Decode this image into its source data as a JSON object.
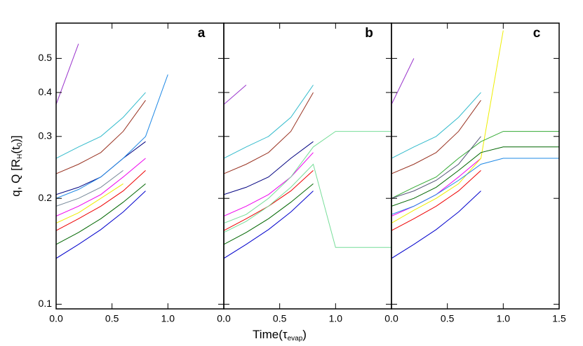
{
  "chart_data": [
    {
      "type": "line",
      "panel_label": "a",
      "ylog": true,
      "ylim": [
        0.097,
        0.63
      ],
      "yticks": [
        0.1,
        0.2,
        0.3,
        0.4,
        0.5
      ],
      "xlim": [
        0,
        1.5
      ],
      "xticks": [
        {
          "value": 0,
          "label": "0.0"
        },
        {
          "value": 0.5,
          "label": "0.5"
        },
        {
          "value": 1,
          "label": "1.0"
        }
      ],
      "ylabel": [
        "q, Q [R",
        "H",
        "(t",
        "0",
        ")]"
      ],
      "x": [
        0,
        0.2,
        0.4,
        0.6,
        0.8,
        1.0,
        1.2,
        1.5
      ],
      "series": [
        {
          "color": "#0000cc",
          "values": [
            0.135,
            0.148,
            0.163,
            0.183,
            0.21,
            null,
            null,
            null
          ]
        },
        {
          "color": "#006600",
          "values": [
            0.148,
            0.16,
            0.175,
            0.195,
            0.22,
            null,
            null,
            null
          ]
        },
        {
          "color": "#ee0000",
          "values": [
            0.162,
            0.175,
            0.19,
            0.21,
            0.24,
            null,
            null,
            null
          ]
        },
        {
          "color": "#eeee00",
          "values": [
            0.17,
            0.182,
            0.2,
            0.22,
            null,
            null,
            null,
            null
          ]
        },
        {
          "color": "#ee00ee",
          "values": [
            0.178,
            0.19,
            0.205,
            0.23,
            0.26,
            null,
            null,
            null
          ]
        },
        {
          "color": "#778899",
          "values": [
            0.19,
            0.2,
            0.215,
            0.24,
            null,
            null,
            null,
            null
          ]
        },
        {
          "color": "#000080",
          "values": [
            0.205,
            0.215,
            0.23,
            0.26,
            0.29,
            null,
            null,
            null
          ]
        },
        {
          "color": "#993322",
          "values": [
            0.235,
            0.25,
            0.27,
            0.31,
            0.38,
            null,
            null,
            null
          ]
        },
        {
          "color": "#33bbcc",
          "values": [
            0.26,
            0.28,
            0.3,
            0.34,
            0.4,
            null,
            null,
            null
          ]
        },
        {
          "color": "#1e88e5",
          "values": [
            0.2,
            0.212,
            0.23,
            0.26,
            0.3,
            0.45,
            null,
            null
          ]
        },
        {
          "color": "#9933cc",
          "values": [
            0.37,
            0.55,
            null,
            null,
            null,
            null,
            null,
            null
          ]
        }
      ]
    },
    {
      "type": "line",
      "panel_label": "b",
      "ylog": true,
      "ylim": [
        0.097,
        0.63
      ],
      "yticks": [
        0.1,
        0.2,
        0.3,
        0.4,
        0.5
      ],
      "xlim": [
        0,
        1.5
      ],
      "xticks": [
        {
          "value": 0,
          "label": "0.0"
        },
        {
          "value": 0.5,
          "label": "0.5"
        },
        {
          "value": 1,
          "label": "1.0"
        }
      ],
      "x": [
        0,
        0.2,
        0.4,
        0.6,
        0.8,
        1.0,
        1.2,
        1.5
      ],
      "series": [
        {
          "color": "#0000cc",
          "values": [
            0.135,
            0.148,
            0.163,
            0.183,
            0.21,
            null,
            null,
            null
          ]
        },
        {
          "color": "#006600",
          "values": [
            0.148,
            0.16,
            0.175,
            0.195,
            0.22,
            null,
            null,
            null
          ]
        },
        {
          "color": "#ee0000",
          "values": [
            0.162,
            0.175,
            0.19,
            0.21,
            0.24,
            null,
            null,
            null
          ]
        },
        {
          "color": "#ee00ee",
          "values": [
            0.178,
            0.19,
            0.205,
            0.23,
            0.27,
            null,
            null,
            null
          ]
        },
        {
          "color": "#000080",
          "values": [
            0.205,
            0.215,
            0.23,
            0.26,
            0.29,
            null,
            null,
            null
          ]
        },
        {
          "color": "#993322",
          "values": [
            0.235,
            0.25,
            0.27,
            0.31,
            0.4,
            null,
            null,
            null
          ]
        },
        {
          "color": "#33bbcc",
          "values": [
            0.26,
            0.28,
            0.3,
            0.34,
            0.42,
            null,
            null,
            null
          ]
        },
        {
          "color": "#77dd99",
          "values": [
            0.17,
            0.18,
            0.2,
            0.23,
            0.28,
            0.31,
            0.31,
            0.31
          ]
        },
        {
          "color": "#77dd99",
          "values": [
            0.16,
            0.172,
            0.19,
            0.215,
            0.25,
            0.145,
            0.145,
            0.145
          ]
        },
        {
          "color": "#9933cc",
          "values": [
            0.37,
            0.42,
            null,
            null,
            null,
            null,
            null,
            null
          ]
        }
      ]
    },
    {
      "type": "line",
      "panel_label": "c",
      "ylog": true,
      "ylim": [
        0.097,
        0.63
      ],
      "yticks": [
        0.1,
        0.2,
        0.3,
        0.4,
        0.5
      ],
      "xlim": [
        0,
        1.5
      ],
      "xticks": [
        {
          "value": 0,
          "label": "0.0"
        },
        {
          "value": 0.5,
          "label": "0.5"
        },
        {
          "value": 1,
          "label": "1.0"
        },
        {
          "value": 1.5,
          "label": "1.5"
        }
      ],
      "xlabel": [
        "Time(τ",
        "evap",
        ")"
      ],
      "x": [
        0,
        0.2,
        0.4,
        0.6,
        0.8,
        1.0,
        1.2,
        1.5
      ],
      "series": [
        {
          "color": "#0000cc",
          "values": [
            0.135,
            0.148,
            0.163,
            0.183,
            0.21,
            null,
            null,
            null
          ]
        },
        {
          "color": "#ee0000",
          "values": [
            0.162,
            0.175,
            0.19,
            0.21,
            0.24,
            null,
            null,
            null
          ]
        },
        {
          "color": "#ee00ee",
          "values": [
            0.178,
            0.19,
            0.205,
            0.23,
            0.26,
            null,
            null,
            null
          ]
        },
        {
          "color": "#993322",
          "values": [
            0.235,
            0.25,
            0.27,
            0.31,
            0.38,
            null,
            null,
            null
          ]
        },
        {
          "color": "#33bbcc",
          "values": [
            0.26,
            0.28,
            0.3,
            0.34,
            0.4,
            null,
            null,
            null
          ]
        },
        {
          "color": "#eeee00",
          "values": [
            0.17,
            0.185,
            0.2,
            0.22,
            0.26,
            0.6,
            null,
            null
          ]
        },
        {
          "color": "#33aa33",
          "values": [
            0.2,
            0.215,
            0.23,
            0.26,
            0.29,
            0.31,
            0.31,
            0.31
          ]
        },
        {
          "color": "#006600",
          "values": [
            0.19,
            0.2,
            0.215,
            0.24,
            0.27,
            0.28,
            0.28,
            0.28
          ]
        },
        {
          "color": "#1e88e5",
          "values": [
            0.18,
            0.19,
            0.205,
            0.225,
            0.25,
            0.26,
            0.26,
            0.26
          ]
        },
        {
          "color": "#555577",
          "values": [
            0.2,
            0.21,
            0.225,
            0.25,
            0.3,
            null,
            null,
            null
          ]
        },
        {
          "color": "#9933cc",
          "values": [
            0.37,
            0.5,
            null,
            null,
            null,
            null,
            null,
            null
          ]
        }
      ]
    }
  ]
}
